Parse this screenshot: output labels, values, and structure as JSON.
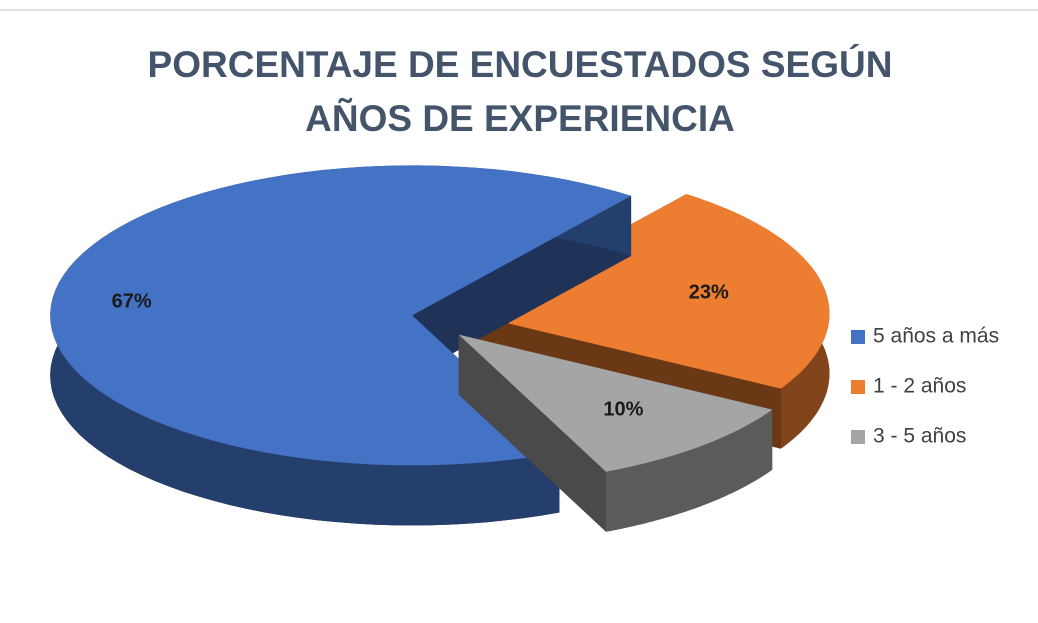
{
  "chart_data": {
    "type": "pie",
    "title": "PORCENTAJE DE ENCUESTADOS SEGÚN AÑOS DE EXPERIENCIA",
    "categories": [
      "5 años a más",
      "1 - 2 años",
      "3 - 5 años"
    ],
    "values": [
      67,
      23,
      10
    ],
    "value_labels": [
      "67%",
      "23%",
      "10%"
    ],
    "colors": [
      "#4472c4",
      "#ed7d31",
      "#a5a5a5"
    ],
    "legend": "right"
  }
}
